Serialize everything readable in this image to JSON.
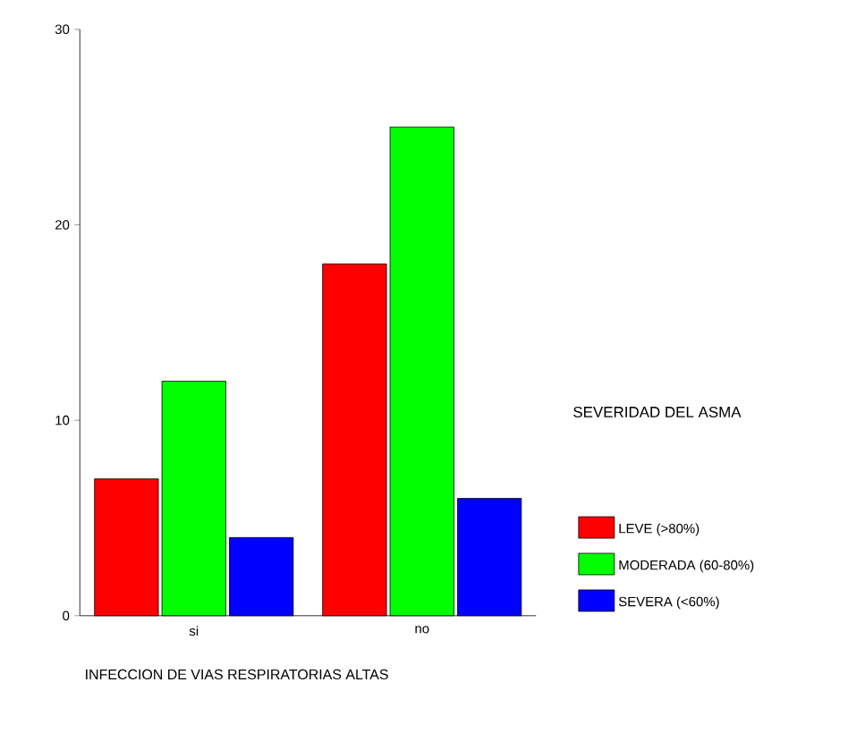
{
  "chart_data": {
    "type": "bar",
    "xlabel": "INFECCION DE VIAS RESPIRATORIAS ALTAS",
    "legend_title": "SEVERIDAD DEL ASMA",
    "categories": [
      "si",
      "no"
    ],
    "series": [
      {
        "name": "LEVE (>80%)",
        "color": "#ff0000",
        "values": [
          7,
          18
        ]
      },
      {
        "name": "MODERADA (60-80%)",
        "color": "#00ff00",
        "values": [
          12,
          25
        ]
      },
      {
        "name": "SEVERA (<60%)",
        "color": "#0000ff",
        "values": [
          4,
          6
        ]
      }
    ],
    "ylim": [
      0,
      30
    ],
    "yticks": [
      0,
      10,
      20,
      30
    ],
    "legend": "right"
  }
}
